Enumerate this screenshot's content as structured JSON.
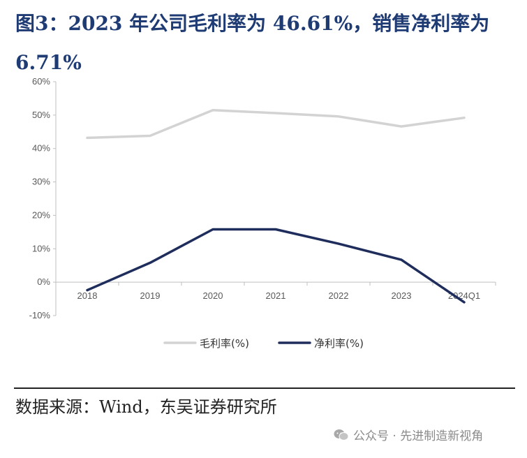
{
  "title": "图3：2023 年公司毛利率为 46.61%，销售净利率为 6.71%",
  "source": "数据来源：Wind，东吴证券研究所",
  "watermark": "公众号 · 先进制造新视角",
  "chart_data": {
    "type": "line",
    "categories": [
      "2018",
      "2019",
      "2020",
      "2021",
      "2022",
      "2023",
      "2024Q1"
    ],
    "series": [
      {
        "name": "毛利率(%)",
        "color": "#d3d3d3",
        "values": [
          43.2,
          43.8,
          51.5,
          50.6,
          49.6,
          46.6,
          49.2
        ]
      },
      {
        "name": "净利率(%)",
        "color": "#1f2d5c",
        "values": [
          -2.4,
          5.8,
          15.8,
          15.8,
          11.5,
          6.7,
          -6.0
        ]
      }
    ],
    "y_ticks": [
      "-10%",
      "0%",
      "10%",
      "20%",
      "30%",
      "40%",
      "50%",
      "60%"
    ],
    "ylim": [
      -10,
      60
    ],
    "legend_position": "bottom",
    "grid": false
  }
}
